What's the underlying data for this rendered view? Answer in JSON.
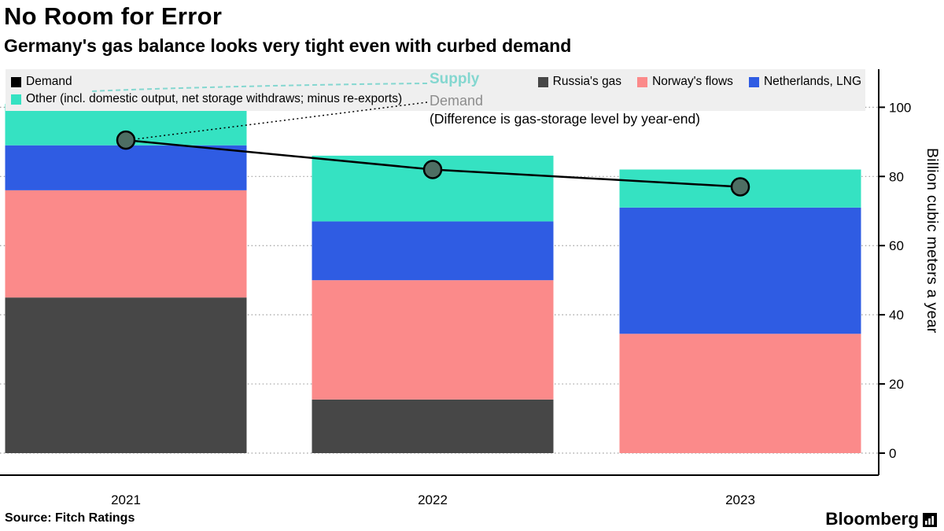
{
  "header": {
    "title": "No Room for Error",
    "subtitle": "Germany's gas balance looks very tight even with curbed demand"
  },
  "legend": {
    "demand_label": "Demand",
    "other_label": "Other (incl. domestic output, net storage withdraws; minus re-exports)",
    "russia_label": "Russia's gas",
    "norway_label": "Norway's flows",
    "netherlands_label": "Netherlands, LNG"
  },
  "annotation": {
    "supply_label": "Supply",
    "demand_label": "Demand",
    "note": "(Difference is gas-storage level by year-end)"
  },
  "colors": {
    "demand": "#000000",
    "russia": "#474747",
    "norway": "#fb8a8a",
    "netherlands": "#2f5ce3",
    "other": "#35e2c2",
    "demand_marker": "#4e6e63",
    "supply_text": "#84d7d0",
    "demand_text": "#8d8d8d",
    "legend_bg": "#efefef"
  },
  "chart_data": {
    "type": "bar",
    "stacked": true,
    "categories": [
      "2021",
      "2022",
      "2023"
    ],
    "series": [
      {
        "name": "Russia's gas",
        "color_key": "russia",
        "values": [
          45,
          15.5,
          0
        ]
      },
      {
        "name": "Norway's flows",
        "color_key": "norway",
        "values": [
          31,
          34.5,
          34.5
        ]
      },
      {
        "name": "Netherlands, LNG",
        "color_key": "netherlands",
        "values": [
          13,
          17,
          36.5
        ]
      },
      {
        "name": "Other (incl. domestic output, net storage withdraws; minus re-exports)",
        "color_key": "other",
        "values": [
          12,
          19,
          11
        ]
      }
    ],
    "line_series": {
      "name": "Demand",
      "color_key": "demand",
      "values": [
        90.5,
        82,
        77
      ]
    },
    "ylabel": "Billion cubic meters a year",
    "yticks": [
      0,
      20,
      40,
      60,
      80,
      100
    ],
    "ylim": [
      0,
      111
    ],
    "legend_position": "top",
    "grid": "horizontal-dotted"
  },
  "footer": {
    "source": "Source: Fitch Ratings",
    "brand": "Bloomberg"
  }
}
